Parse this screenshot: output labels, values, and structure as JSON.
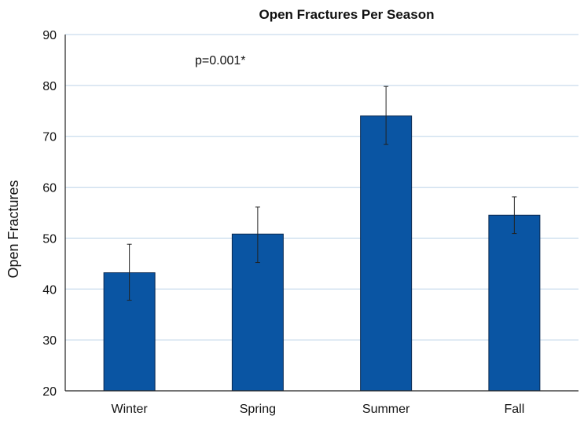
{
  "chart_data": {
    "type": "bar",
    "title": "Open Fractures Per Season",
    "xlabel": "",
    "ylabel": "Open Fractures",
    "categories": [
      "Winter",
      "Spring",
      "Summer",
      "Fall"
    ],
    "series": [
      {
        "values": [
          43.2,
          50.8,
          74,
          54.5
        ],
        "error_low": [
          37.8,
          45.2,
          68.4,
          50.9
        ],
        "error_high": [
          48.8,
          56.1,
          79.8,
          58.1
        ]
      }
    ],
    "ylim": [
      20,
      90
    ],
    "yticks": [
      20,
      30,
      40,
      50,
      60,
      70,
      80,
      90
    ],
    "grid": true,
    "legend": "none",
    "annotation": "p=0.001*",
    "colors": {
      "bar": "#0a55a3",
      "bar_edge": "#0b2a52",
      "grid": "#bcd3e8",
      "axis": "#222222",
      "error_bar": "#222222"
    }
  }
}
